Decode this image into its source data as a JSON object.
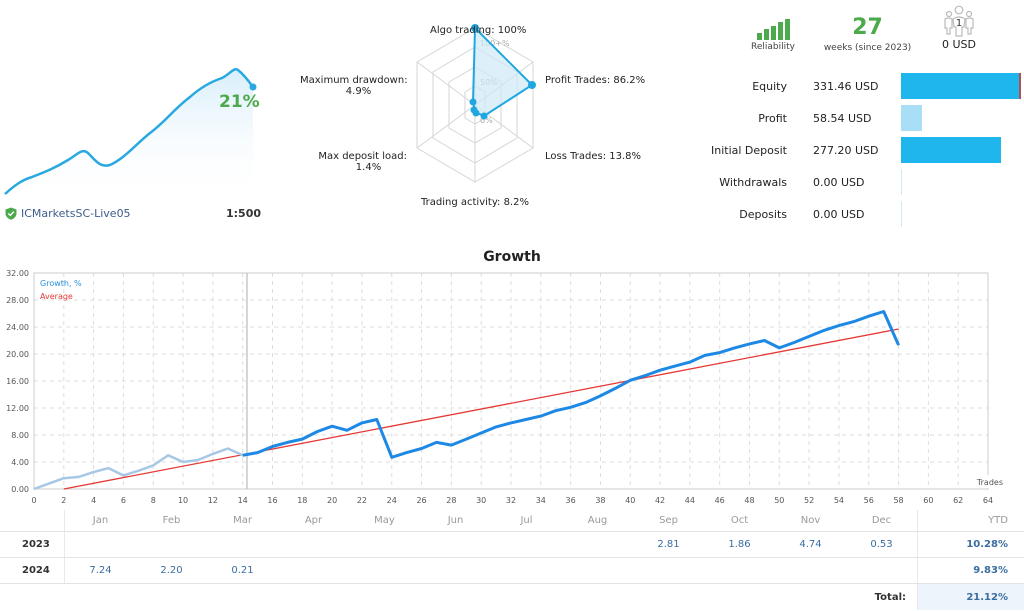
{
  "mini_chart": {
    "growth_label": "21%",
    "server": "ICMarketsSC-Live05",
    "leverage": "1:500",
    "line_color": "#29a9e0"
  },
  "radar": {
    "labels": {
      "algo_trading": "Algo trading: 100%",
      "profit_trades": "Profit Trades: 86.2%",
      "loss_trades": "Loss Trades: 13.8%",
      "trading_activity": "Trading activity: 8.2%",
      "max_deposit_load_title": "Max deposit load:",
      "max_deposit_load_value": "1.4%",
      "max_drawdown_title": "Maximum drawdown:",
      "max_drawdown_value": "4.9%"
    },
    "scale_labels": {
      "top": "100+%",
      "mid": "50%",
      "zero": "0%"
    },
    "values": {
      "algo_trading": 100,
      "profit_trades": 86.2,
      "loss_trades": 13.8,
      "trading_activity": 8.2,
      "max_deposit_load": 1.4,
      "max_drawdown": 4.9
    }
  },
  "stats": {
    "reliability_label": "Reliability",
    "weeks_value": "27",
    "weeks_label": "weeks (since 2023)",
    "subscribers_count": "1",
    "subscribers_usd": "0 USD"
  },
  "balance": [
    {
      "label": "Equity",
      "value": "331.46 USD",
      "bar_pct": 100,
      "color": "#1fb6ed"
    },
    {
      "label": "Profit",
      "value": "58.54 USD",
      "bar_pct": 17,
      "color": "#a8def6"
    },
    {
      "label": "Initial Deposit",
      "value": "277.20 USD",
      "bar_pct": 83,
      "color": "#1fb6ed"
    },
    {
      "label": "Withdrawals",
      "value": "0.00 USD",
      "bar_pct": 0.5,
      "color": "#d6eef9"
    },
    {
      "label": "Deposits",
      "value": "0.00 USD",
      "bar_pct": 0.5,
      "color": "#d6eef9"
    }
  ],
  "growth": {
    "title": "Growth",
    "legend_growth": "Growth, %",
    "legend_average": "Average",
    "x_axis_label": "Trades"
  },
  "chart_data": {
    "type": "line",
    "title": "Growth",
    "xlabel": "Trades",
    "ylabel": "",
    "xlim": [
      0,
      64
    ],
    "ylim": [
      0,
      32
    ],
    "x_ticks": [
      0,
      2,
      4,
      6,
      8,
      10,
      12,
      14,
      16,
      18,
      20,
      22,
      24,
      26,
      28,
      30,
      32,
      34,
      36,
      38,
      40,
      42,
      44,
      46,
      48,
      50,
      52,
      54,
      56,
      58,
      60,
      62,
      64
    ],
    "y_ticks": [
      "0.00",
      "4.00",
      "8.00",
      "12.00",
      "16.00",
      "20.00",
      "24.00",
      "28.00",
      "32.00"
    ],
    "grid": true,
    "legend_position": "top-left",
    "history_split_x": 14,
    "series": [
      {
        "name": "Growth, %",
        "color": "#1e88e5",
        "x": [
          0,
          1,
          2,
          3,
          4,
          5,
          6,
          7,
          8,
          9,
          10,
          11,
          12,
          13,
          14,
          15,
          16,
          17,
          18,
          19,
          20,
          21,
          22,
          23,
          24,
          25,
          26,
          27,
          28,
          29,
          30,
          31,
          32,
          33,
          34,
          35,
          36,
          37,
          38,
          39,
          40,
          41,
          42,
          43,
          44,
          45,
          46,
          47,
          48,
          49,
          50,
          51,
          52,
          53,
          54,
          55,
          56,
          57,
          58
        ],
        "values": [
          0,
          0.8,
          1.6,
          1.8,
          2.5,
          3.1,
          2.0,
          2.7,
          3.5,
          5.0,
          4.0,
          4.3,
          5.2,
          6.0,
          5.0,
          5.4,
          6.3,
          6.9,
          7.4,
          8.5,
          9.3,
          8.7,
          9.8,
          10.3,
          4.7,
          5.4,
          6.0,
          6.9,
          6.5,
          7.4,
          8.3,
          9.2,
          9.8,
          10.3,
          10.8,
          11.6,
          12.1,
          12.8,
          13.8,
          14.9,
          16.1,
          16.8,
          17.6,
          18.2,
          18.8,
          19.8,
          20.2,
          20.9,
          21.5,
          22.0,
          20.9,
          21.7,
          22.6,
          23.5,
          24.2,
          24.8,
          25.6,
          26.3,
          21.3
        ]
      },
      {
        "name": "Average",
        "color": "#e53935",
        "x": [
          2,
          58
        ],
        "values": [
          0,
          23.7
        ]
      }
    ]
  },
  "returns_table": {
    "months": [
      "Jan",
      "Feb",
      "Mar",
      "Apr",
      "May",
      "Jun",
      "Jul",
      "Aug",
      "Sep",
      "Oct",
      "Nov",
      "Dec"
    ],
    "ytd_header": "YTD",
    "rows": [
      {
        "year": "2023",
        "values": [
          "",
          "",
          "",
          "",
          "",
          "",
          "",
          "",
          "2.81",
          "1.86",
          "4.74",
          "0.53"
        ],
        "ytd": "10.28%"
      },
      {
        "year": "2024",
        "values": [
          "7.24",
          "2.20",
          "0.21",
          "",
          "",
          "",
          "",
          "",
          "",
          "",
          "",
          ""
        ],
        "ytd": "9.83%"
      }
    ],
    "total_label": "Total:",
    "total_value": "21.12%"
  }
}
